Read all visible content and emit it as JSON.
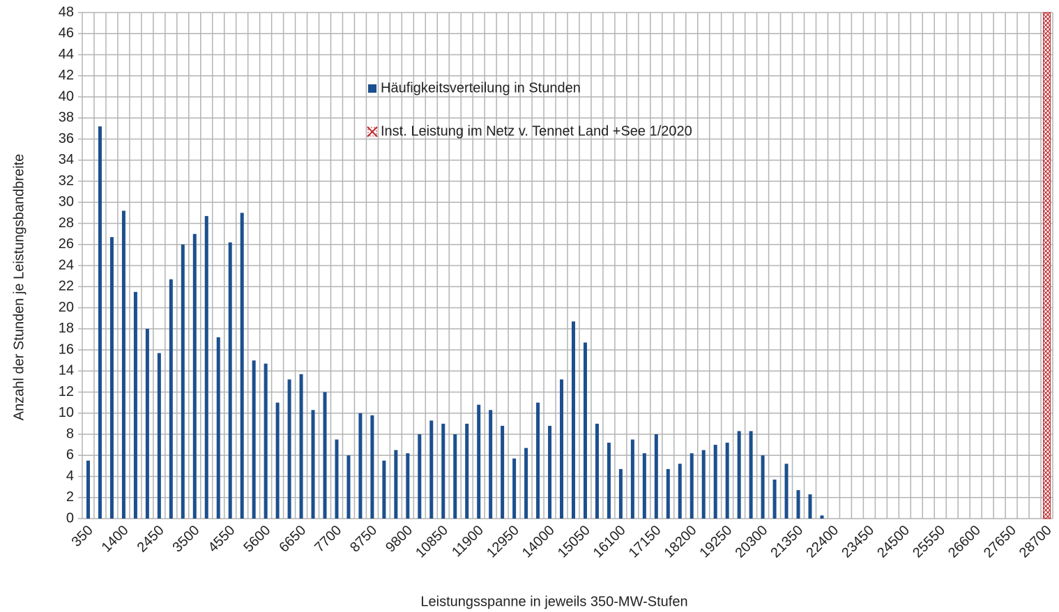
{
  "chart_data": {
    "type": "bar",
    "x_label": "Leistungsspanne in jeweils 350-MW-Stufen",
    "y_label": "Anzahl der Stunden je Leistungsbandbreite",
    "categories": [
      "350",
      null,
      null,
      "1400",
      null,
      null,
      "2450",
      null,
      null,
      "3500",
      null,
      null,
      "4550",
      null,
      null,
      "5600",
      null,
      null,
      "6650",
      null,
      null,
      "7700",
      null,
      null,
      "8750",
      null,
      null,
      "9800",
      null,
      null,
      "10850",
      null,
      null,
      "11900",
      null,
      null,
      "12950",
      null,
      null,
      "14000",
      null,
      null,
      "15050",
      null,
      null,
      "16100",
      null,
      null,
      "17150",
      null,
      null,
      "18200",
      null,
      null,
      "19250",
      null,
      null,
      "20300",
      null,
      null,
      "21350",
      null,
      null,
      "22400",
      null,
      null,
      "23450",
      null,
      null,
      "24500",
      null,
      null,
      "25550",
      null,
      null,
      "26600",
      null,
      null,
      "27650",
      null,
      null,
      "28700"
    ],
    "series": [
      {
        "name": "Häufigkeitsverteilung in Stunden",
        "color": "#1c4f8e",
        "values": [
          5.5,
          37.2,
          26.7,
          29.2,
          21.5,
          18,
          15.7,
          22.7,
          26,
          27,
          28.7,
          17.2,
          26.2,
          29,
          15,
          14.7,
          11,
          13.2,
          13.7,
          10.3,
          12,
          7.5,
          6,
          10,
          9.8,
          5.5,
          6.5,
          6.2,
          8,
          9.3,
          9,
          8,
          9,
          10.8,
          10.3,
          8.8,
          5.7,
          6.7,
          11,
          8.8,
          13.2,
          18.7,
          16.7,
          9,
          7.2,
          4.7,
          7.5,
          6.2,
          8,
          4.7,
          5.2,
          6.2,
          6.5,
          7,
          7.2,
          8.3,
          8.3,
          6,
          3.7,
          5.2,
          2.7,
          2.3,
          0.3,
          0,
          0,
          0,
          0,
          0,
          0,
          0,
          0,
          0,
          0,
          0,
          0,
          0,
          0,
          0,
          0,
          0,
          0,
          0
        ]
      },
      {
        "name": "Inst. Leistung im Netz v. Tennet  Land +See 1/2020",
        "color": "#c0282d",
        "hatch": true,
        "values": [
          null,
          null,
          null,
          null,
          null,
          null,
          null,
          null,
          null,
          null,
          null,
          null,
          null,
          null,
          null,
          null,
          null,
          null,
          null,
          null,
          null,
          null,
          null,
          null,
          null,
          null,
          null,
          null,
          null,
          null,
          null,
          null,
          null,
          null,
          null,
          null,
          null,
          null,
          null,
          null,
          null,
          null,
          null,
          null,
          null,
          null,
          null,
          null,
          null,
          null,
          null,
          null,
          null,
          null,
          null,
          null,
          null,
          null,
          null,
          null,
          null,
          null,
          null,
          null,
          null,
          null,
          null,
          null,
          null,
          null,
          null,
          null,
          null,
          null,
          null,
          null,
          null,
          null,
          null,
          null,
          null,
          48
        ]
      }
    ],
    "ylim": [
      0,
      48
    ],
    "yticks": [
      0,
      2,
      4,
      6,
      8,
      10,
      12,
      14,
      16,
      18,
      20,
      22,
      24,
      26,
      28,
      30,
      32,
      34,
      36,
      38,
      40,
      42,
      44,
      46,
      48
    ],
    "grid": true
  }
}
